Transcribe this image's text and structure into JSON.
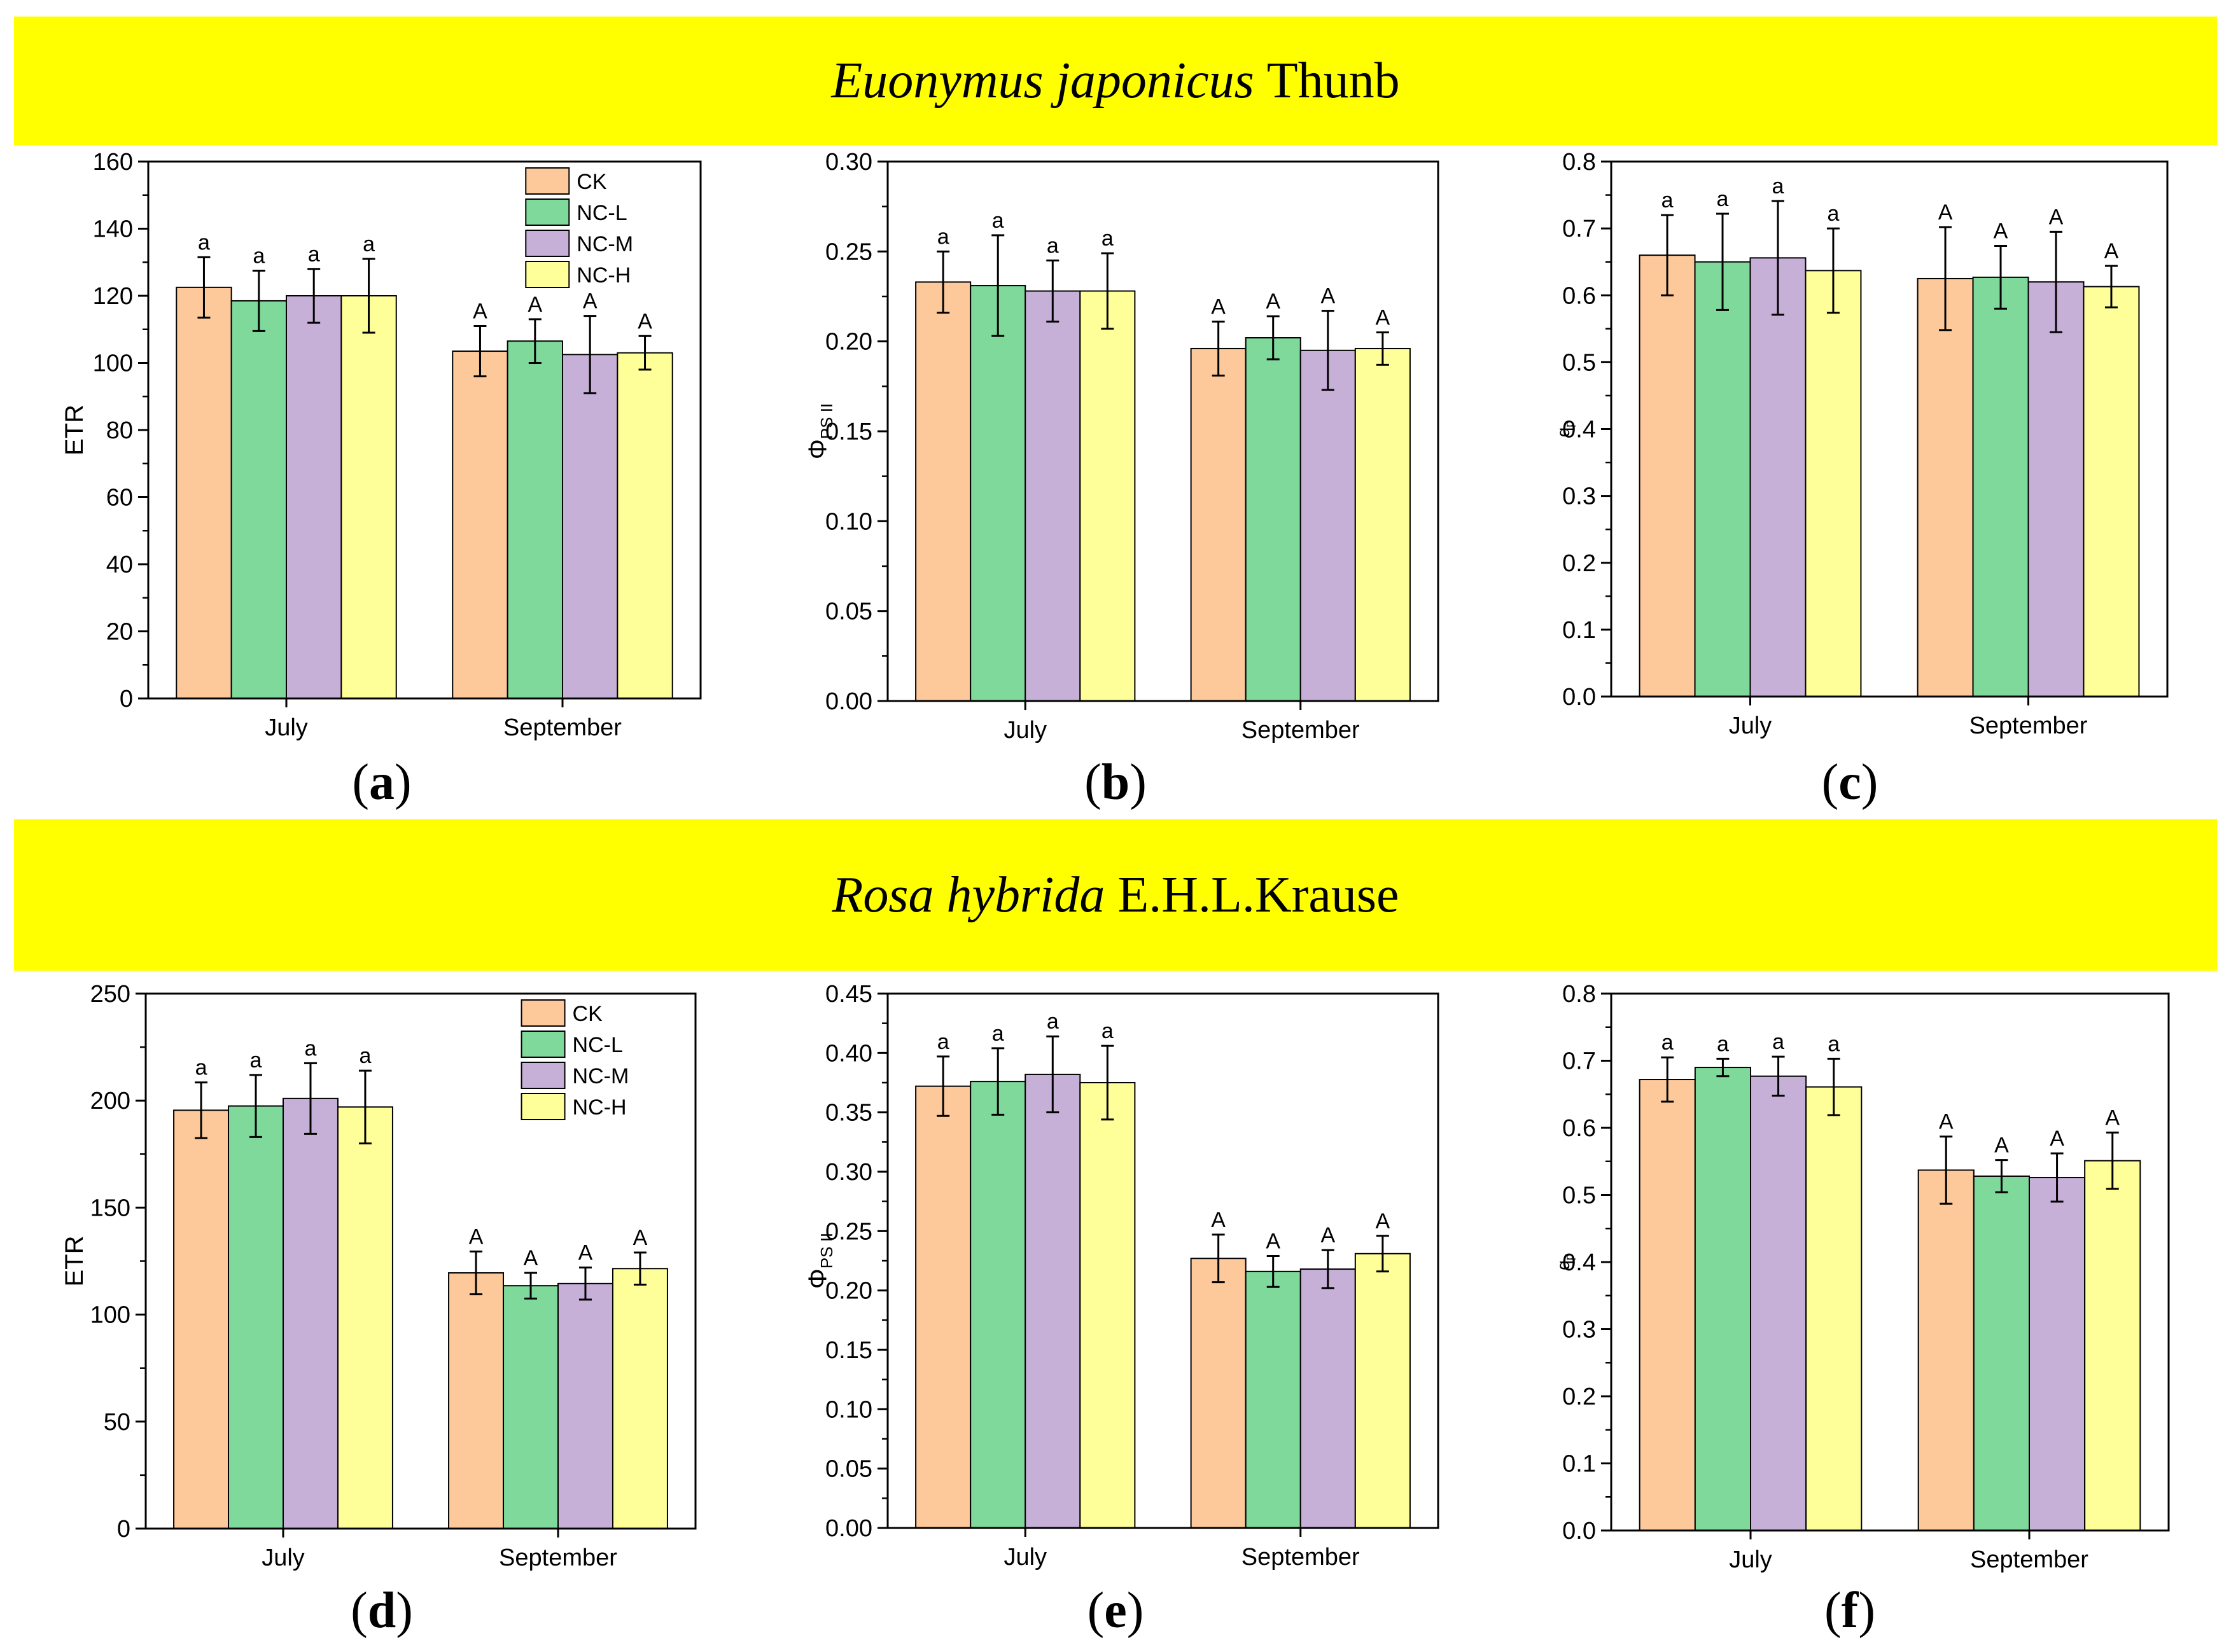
{
  "banners": {
    "top": {
      "species_italic": "Euonymus japonicus",
      "author": "Thunb"
    },
    "bottom": {
      "species_italic": "Rosa hybrida",
      "author": "E.H.L.Krause"
    }
  },
  "colors": {
    "CK": "#fdc99a",
    "NC-L": "#7ed99a",
    "NC-M": "#c7b0d8",
    "NC-H": "#ffff99"
  },
  "chart_data": [
    {
      "id": "a",
      "panel_label": "a",
      "type": "bar",
      "categories": [
        "July",
        "September"
      ],
      "ylabel": "ETR",
      "ylabel_sub": "",
      "ylim": [
        0,
        160
      ],
      "yticks": [
        0,
        20,
        40,
        60,
        80,
        100,
        120,
        140,
        160
      ],
      "ytick_labels": [
        "0",
        "20",
        "40",
        "60",
        "80",
        "100",
        "120",
        "140",
        "160"
      ],
      "legend": {
        "show": true,
        "position": "top-right"
      },
      "series": [
        {
          "name": "CK",
          "values": [
            122.5,
            103.5
          ],
          "errors": [
            9,
            7.5
          ],
          "letters": [
            "a",
            "A"
          ]
        },
        {
          "name": "NC-L",
          "values": [
            118.5,
            106.5
          ],
          "errors": [
            9,
            6.5
          ],
          "letters": [
            "a",
            "A"
          ]
        },
        {
          "name": "NC-M",
          "values": [
            120,
            102.5
          ],
          "errors": [
            8,
            11.5
          ],
          "letters": [
            "a",
            "A"
          ]
        },
        {
          "name": "NC-H",
          "values": [
            120,
            103
          ],
          "errors": [
            11,
            5
          ],
          "letters": [
            "a",
            "A"
          ]
        }
      ]
    },
    {
      "id": "b",
      "panel_label": "b",
      "type": "bar",
      "categories": [
        "July",
        "September"
      ],
      "ylabel": "Φ",
      "ylabel_sub": "PS II",
      "ylim": [
        0,
        0.3
      ],
      "yticks": [
        0,
        0.05,
        0.1,
        0.15,
        0.2,
        0.25,
        0.3
      ],
      "ytick_labels": [
        "0.00",
        "0.05",
        "0.10",
        "0.15",
        "0.20",
        "0.25",
        "0.30"
      ],
      "legend": {
        "show": false
      },
      "series": [
        {
          "name": "CK",
          "values": [
            0.233,
            0.196
          ],
          "errors": [
            0.017,
            0.015
          ],
          "letters": [
            "a",
            "A"
          ]
        },
        {
          "name": "NC-L",
          "values": [
            0.231,
            0.202
          ],
          "errors": [
            0.028,
            0.012
          ],
          "letters": [
            "a",
            "A"
          ]
        },
        {
          "name": "NC-M",
          "values": [
            0.228,
            0.195
          ],
          "errors": [
            0.017,
            0.022
          ],
          "letters": [
            "a",
            "A"
          ]
        },
        {
          "name": "NC-H",
          "values": [
            0.228,
            0.196
          ],
          "errors": [
            0.021,
            0.009
          ],
          "letters": [
            "a",
            "A"
          ]
        }
      ]
    },
    {
      "id": "c",
      "panel_label": "c",
      "type": "bar",
      "categories": [
        "July",
        "September"
      ],
      "ylabel": "q",
      "ylabel_sub": "p",
      "ylim": [
        0,
        0.8
      ],
      "yticks": [
        0,
        0.1,
        0.2,
        0.3,
        0.4,
        0.5,
        0.6,
        0.7,
        0.8
      ],
      "ytick_labels": [
        "0.0",
        "0.1",
        "0.2",
        "0.3",
        "0.4",
        "0.5",
        "0.6",
        "0.7",
        "0.8"
      ],
      "legend": {
        "show": false
      },
      "series": [
        {
          "name": "CK",
          "values": [
            0.66,
            0.625
          ],
          "errors": [
            0.06,
            0.077
          ],
          "letters": [
            "a",
            "A"
          ]
        },
        {
          "name": "NC-L",
          "values": [
            0.65,
            0.627
          ],
          "errors": [
            0.072,
            0.047
          ],
          "letters": [
            "a",
            "A"
          ]
        },
        {
          "name": "NC-M",
          "values": [
            0.656,
            0.62
          ],
          "errors": [
            0.085,
            0.075
          ],
          "letters": [
            "a",
            "A"
          ]
        },
        {
          "name": "NC-H",
          "values": [
            0.637,
            0.613
          ],
          "errors": [
            0.063,
            0.031
          ],
          "letters": [
            "a",
            "A"
          ]
        }
      ]
    },
    {
      "id": "d",
      "panel_label": "d",
      "type": "bar",
      "categories": [
        "July",
        "September"
      ],
      "ylabel": "ETR",
      "ylabel_sub": "",
      "ylim": [
        0,
        250
      ],
      "yticks": [
        0,
        50,
        100,
        150,
        200,
        250
      ],
      "ytick_labels": [
        "0",
        "50",
        "100",
        "150",
        "200",
        "250"
      ],
      "legend": {
        "show": true,
        "position": "top-right"
      },
      "series": [
        {
          "name": "CK",
          "values": [
            195.5,
            119.5
          ],
          "errors": [
            13,
            10
          ],
          "letters": [
            "a",
            "A"
          ]
        },
        {
          "name": "NC-L",
          "values": [
            197.5,
            113.5
          ],
          "errors": [
            14.5,
            6
          ],
          "letters": [
            "a",
            "A"
          ]
        },
        {
          "name": "NC-M",
          "values": [
            201,
            114.5
          ],
          "errors": [
            16.5,
            7.5
          ],
          "letters": [
            "a",
            "A"
          ]
        },
        {
          "name": "NC-H",
          "values": [
            197,
            121.5
          ],
          "errors": [
            17,
            7.5
          ],
          "letters": [
            "a",
            "A"
          ]
        }
      ]
    },
    {
      "id": "e",
      "panel_label": "e",
      "type": "bar",
      "categories": [
        "July",
        "September"
      ],
      "ylabel": "Φ",
      "ylabel_sub": "PS II",
      "ylim": [
        0,
        0.45
      ],
      "yticks": [
        0,
        0.05,
        0.1,
        0.15,
        0.2,
        0.25,
        0.3,
        0.35,
        0.4,
        0.45
      ],
      "ytick_labels": [
        "0.00",
        "0.05",
        "0.10",
        "0.15",
        "0.20",
        "0.25",
        "0.30",
        "0.35",
        "0.40",
        "0.45"
      ],
      "legend": {
        "show": false
      },
      "series": [
        {
          "name": "CK",
          "values": [
            0.372,
            0.227
          ],
          "errors": [
            0.025,
            0.02
          ],
          "letters": [
            "a",
            "A"
          ]
        },
        {
          "name": "NC-L",
          "values": [
            0.376,
            0.216
          ],
          "errors": [
            0.028,
            0.013
          ],
          "letters": [
            "a",
            "A"
          ]
        },
        {
          "name": "NC-M",
          "values": [
            0.382,
            0.218
          ],
          "errors": [
            0.032,
            0.016
          ],
          "letters": [
            "a",
            "A"
          ]
        },
        {
          "name": "NC-H",
          "values": [
            0.375,
            0.231
          ],
          "errors": [
            0.031,
            0.015
          ],
          "letters": [
            "a",
            "A"
          ]
        }
      ]
    },
    {
      "id": "f",
      "panel_label": "f",
      "type": "bar",
      "categories": [
        "July",
        "September"
      ],
      "ylabel": "q",
      "ylabel_sub": "p",
      "ylim": [
        0,
        0.8
      ],
      "yticks": [
        0,
        0.1,
        0.2,
        0.3,
        0.4,
        0.5,
        0.6,
        0.7,
        0.8
      ],
      "ytick_labels": [
        "0.0",
        "0.1",
        "0.2",
        "0.3",
        "0.4",
        "0.5",
        "0.6",
        "0.7",
        "0.8"
      ],
      "legend": {
        "show": false
      },
      "series": [
        {
          "name": "CK",
          "values": [
            0.672,
            0.537
          ],
          "errors": [
            0.033,
            0.05
          ],
          "letters": [
            "a",
            "A"
          ]
        },
        {
          "name": "NC-L",
          "values": [
            0.69,
            0.528
          ],
          "errors": [
            0.013,
            0.024
          ],
          "letters": [
            "a",
            "A"
          ]
        },
        {
          "name": "NC-M",
          "values": [
            0.677,
            0.526
          ],
          "errors": [
            0.029,
            0.036
          ],
          "letters": [
            "a",
            "A"
          ]
        },
        {
          "name": "NC-H",
          "values": [
            0.661,
            0.551
          ],
          "errors": [
            0.042,
            0.042
          ],
          "letters": [
            "a",
            "A"
          ]
        }
      ]
    }
  ]
}
